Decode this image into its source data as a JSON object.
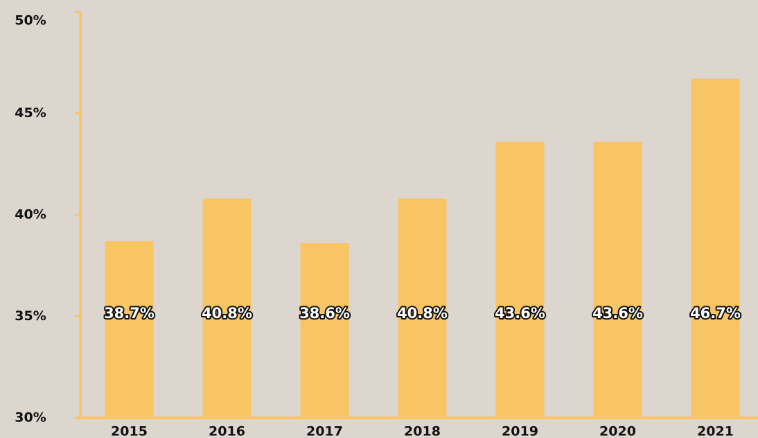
{
  "chart_data": {
    "type": "bar",
    "categories": [
      "2015",
      "2016",
      "2017",
      "2018",
      "2019",
      "2020",
      "2021"
    ],
    "values": [
      38.7,
      40.8,
      38.6,
      40.8,
      43.6,
      43.6,
      46.7
    ],
    "value_labels": [
      "38.7%",
      "40.8%",
      "38.6%",
      "40.8%",
      "43.6%",
      "43.6%",
      "46.7%"
    ],
    "color": "#f9c463",
    "ylim": [
      30,
      50
    ],
    "yticks": [
      {
        "value": 30,
        "label": "30%"
      },
      {
        "value": 35,
        "label": "35%"
      },
      {
        "value": 40,
        "label": "40%"
      },
      {
        "value": 45,
        "label": "45%"
      },
      {
        "value": 50,
        "label": "50%"
      }
    ],
    "grid": false
  }
}
